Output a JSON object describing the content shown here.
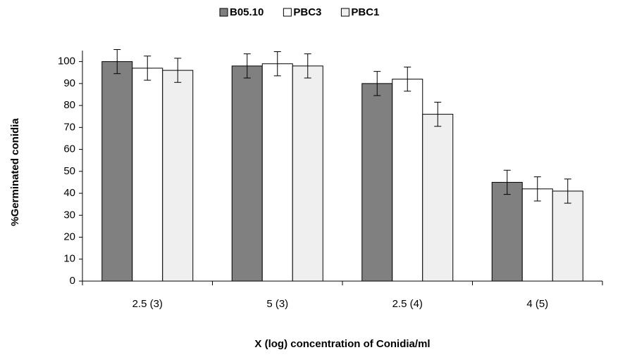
{
  "chart_data": {
    "type": "bar",
    "x_label": "X (log) concentration of Conidia/ml",
    "y_label": "%Germinated conidia",
    "categories": [
      "2.5 (3)",
      "5 (3)",
      "2.5 (4)",
      "4 (5)"
    ],
    "series": [
      {
        "name": "B05.10",
        "color": "#808080",
        "values": [
          100,
          98,
          90,
          45
        ],
        "errors": [
          5.5,
          5.5,
          5.5,
          5.5
        ]
      },
      {
        "name": "PBC3",
        "color": "#ffffff",
        "values": [
          97,
          99,
          92,
          42
        ],
        "errors": [
          5.5,
          5.5,
          5.5,
          5.5
        ]
      },
      {
        "name": "PBC1",
        "color": "#efefef",
        "values": [
          96,
          98,
          76,
          41
        ],
        "errors": [
          5.5,
          5.5,
          5.5,
          5.5
        ]
      }
    ],
    "ylim": [
      0,
      105
    ],
    "yticks": [
      0,
      10,
      20,
      30,
      40,
      50,
      60,
      70,
      80,
      90,
      100
    ],
    "legend": "top"
  }
}
